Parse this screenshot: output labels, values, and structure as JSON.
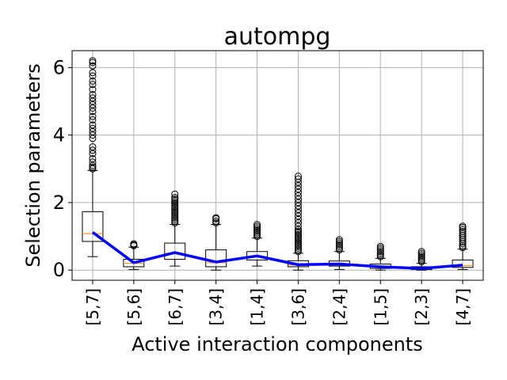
{
  "chart_data": {
    "type": "box",
    "title": "autompg",
    "xlabel": "Active interaction components",
    "ylabel": "Selection parameters",
    "categories": [
      "[5,7]",
      "[5,6]",
      "[6,7]",
      "[3,4]",
      "[1,4]",
      "[3,6]",
      "[2,4]",
      "[1,5]",
      "[2,3]",
      "[4,7]"
    ],
    "ylim": [
      -0.3,
      6.5
    ],
    "yticks": [
      0,
      2,
      4,
      6
    ],
    "grid": true,
    "boxes": [
      {
        "whislo": 0.4,
        "q1": 0.85,
        "med": 1.08,
        "q3": 1.73,
        "whishi": 2.95,
        "fliers": [
          3.0,
          3.05,
          3.1,
          3.2,
          3.3,
          3.45,
          3.55,
          3.65,
          3.9,
          4.0,
          4.1,
          4.2,
          4.3,
          4.45,
          4.55,
          4.7,
          4.8,
          4.9,
          5.0,
          5.1,
          5.2,
          5.35,
          5.5,
          5.6,
          5.75,
          5.85,
          6.05,
          6.15,
          6.2
        ]
      },
      {
        "whislo": 0.02,
        "q1": 0.1,
        "med": 0.2,
        "q3": 0.32,
        "whishi": 0.68,
        "fliers": [
          0.72,
          0.75,
          0.78
        ]
      },
      {
        "whislo": 0.12,
        "q1": 0.32,
        "med": 0.5,
        "q3": 0.8,
        "whishi": 1.35,
        "fliers": [
          1.4,
          1.45,
          1.5,
          1.55,
          1.6,
          1.65,
          1.7,
          1.75,
          1.8,
          1.85,
          1.9,
          1.95,
          2.0,
          2.05,
          2.1,
          2.15,
          2.25
        ]
      },
      {
        "whislo": 0.0,
        "q1": 0.1,
        "med": 0.22,
        "q3": 0.6,
        "whishi": 1.35,
        "fliers": [
          1.4,
          1.45,
          1.52,
          1.55
        ]
      },
      {
        "whislo": 0.12,
        "q1": 0.3,
        "med": 0.4,
        "q3": 0.55,
        "whishi": 0.95,
        "fliers": [
          1.0,
          1.05,
          1.1,
          1.15,
          1.2,
          1.25,
          1.3,
          1.35
        ]
      },
      {
        "whislo": 0.0,
        "q1": 0.1,
        "med": 0.15,
        "q3": 0.28,
        "whishi": 0.5,
        "fliers": [
          0.55,
          0.6,
          0.65,
          0.7,
          0.75,
          0.8,
          0.85,
          0.9,
          0.95,
          1.0,
          1.05,
          1.1,
          1.15,
          1.2,
          1.3,
          1.4,
          1.5,
          1.6,
          1.7,
          1.8,
          1.9,
          2.0,
          2.1,
          2.2,
          2.3,
          2.4,
          2.5,
          2.6,
          2.7,
          2.78
        ]
      },
      {
        "whislo": 0.02,
        "q1": 0.12,
        "med": 0.17,
        "q3": 0.27,
        "whishi": 0.55,
        "fliers": [
          0.6,
          0.65,
          0.7,
          0.75,
          0.8,
          0.85,
          0.9
        ]
      },
      {
        "whislo": 0.0,
        "q1": 0.05,
        "med": 0.1,
        "q3": 0.18,
        "whishi": 0.35,
        "fliers": [
          0.4,
          0.45,
          0.5,
          0.55,
          0.6,
          0.65,
          0.7
        ]
      },
      {
        "whislo": 0.0,
        "q1": 0.02,
        "med": 0.05,
        "q3": 0.1,
        "whishi": 0.2,
        "fliers": [
          0.25,
          0.3,
          0.35,
          0.4,
          0.45,
          0.5,
          0.55
        ]
      },
      {
        "whislo": 0.02,
        "q1": 0.08,
        "med": 0.13,
        "q3": 0.3,
        "whishi": 0.62,
        "fliers": [
          0.67,
          0.72,
          0.78,
          0.84,
          0.9,
          0.96,
          1.02,
          1.08,
          1.14,
          1.2,
          1.26,
          1.3
        ]
      }
    ],
    "mean_line": {
      "color": "#0000ff",
      "values": [
        1.12,
        0.22,
        0.52,
        0.24,
        0.42,
        0.16,
        0.18,
        0.1,
        0.05,
        0.15
      ]
    },
    "colors": {
      "median": "#ff7f0e",
      "grid": "#b0b0b0",
      "box": "#000000",
      "line": "#0000ff"
    }
  }
}
